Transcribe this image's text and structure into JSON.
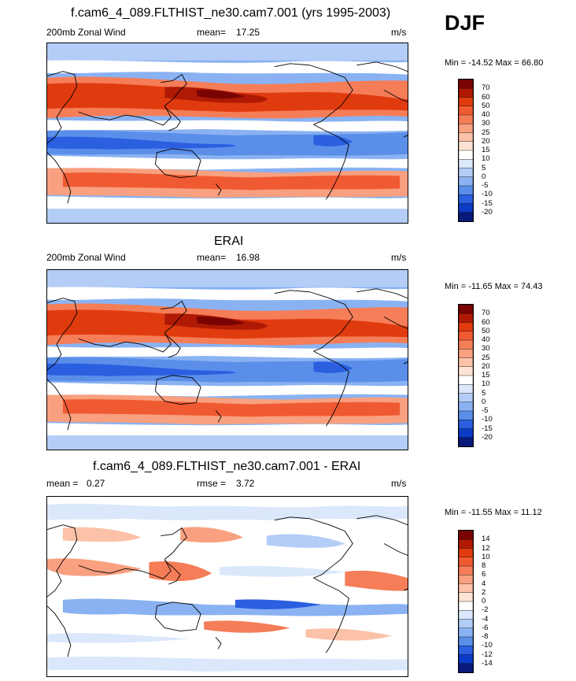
{
  "season": "DJF",
  "chart_data": [
    {
      "type": "heatmap",
      "title": "f.cam6_4_089.FLTHIST_ne30.cam7.001 (yrs 1995-2003)",
      "left_label": "200mb Zonal Wind",
      "stat_label": "mean=",
      "stat_value": "17.25",
      "units": "m/s",
      "minmax_text": "Min = -14.52 Max =  66.80",
      "min": -14.52,
      "max": 66.8,
      "colorbar_levels": [
        "70",
        "60",
        "50",
        "40",
        "30",
        "25",
        "20",
        "15",
        "10",
        "5",
        "0",
        "-5",
        "-10",
        "-15",
        "-20"
      ],
      "colorbar_colors": [
        "#7a0403",
        "#b01a04",
        "#e03b0f",
        "#f05a32",
        "#f57d57",
        "#f8a07f",
        "#fbc2a7",
        "#fde3d3",
        "#ffffff",
        "#dbe8fb",
        "#b3cdf7",
        "#8ab2f2",
        "#5a8ee9",
        "#2b5fe0",
        "#0c3bc6",
        "#0a1a7a"
      ],
      "colorbar_min": -20,
      "colorbar_max": 70
    },
    {
      "type": "heatmap",
      "title": "ERAI",
      "left_label": "200mb Zonal Wind",
      "stat_label": "mean=",
      "stat_value": "16.98",
      "units": "m/s",
      "minmax_text": "Min = -11.65 Max =  74.43",
      "min": -11.65,
      "max": 74.43,
      "colorbar_levels": [
        "70",
        "60",
        "50",
        "40",
        "30",
        "25",
        "20",
        "15",
        "10",
        "5",
        "0",
        "-5",
        "-10",
        "-15",
        "-20"
      ],
      "colorbar_colors": [
        "#7a0403",
        "#b01a04",
        "#e03b0f",
        "#f05a32",
        "#f57d57",
        "#f8a07f",
        "#fbc2a7",
        "#fde3d3",
        "#ffffff",
        "#dbe8fb",
        "#b3cdf7",
        "#8ab2f2",
        "#5a8ee9",
        "#2b5fe0",
        "#0c3bc6",
        "#0a1a7a"
      ],
      "colorbar_min": -20,
      "colorbar_max": 70
    },
    {
      "type": "heatmap",
      "title": "f.cam6_4_089.FLTHIST_ne30.cam7.001 - ERAI",
      "left_label": "mean =",
      "left_value": "0.27",
      "stat_label": "rmse =",
      "stat_value": "3.72",
      "units": "m/s",
      "minmax_text": "Min = -11.55 Max =  11.12",
      "min": -11.55,
      "max": 11.12,
      "colorbar_levels": [
        "14",
        "12",
        "10",
        "8",
        "6",
        "4",
        "2",
        "0",
        "-2",
        "-4",
        "-6",
        "-8",
        "-10",
        "-12",
        "-14"
      ],
      "colorbar_colors": [
        "#7a0403",
        "#b01a04",
        "#e03b0f",
        "#f05a32",
        "#f57d57",
        "#f8a07f",
        "#fbc2a7",
        "#fde3d3",
        "#ffffff",
        "#dbe8fb",
        "#b3cdf7",
        "#8ab2f2",
        "#5a8ee9",
        "#2b5fe0",
        "#0c3bc6",
        "#0a1a7a"
      ],
      "colorbar_min": -14,
      "colorbar_max": 14
    }
  ]
}
